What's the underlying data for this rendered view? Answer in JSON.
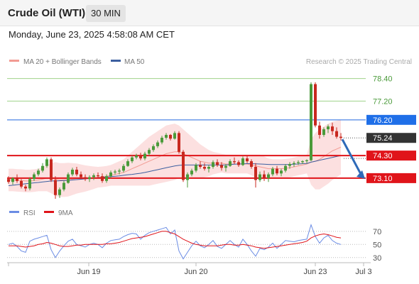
{
  "header": {
    "instrument": "Crude Oil (WTI)",
    "timeframe": "30 MIN",
    "datetime": "Monday, June 23, 2025 4:58:08 AM CET"
  },
  "legend": {
    "ma20_label": "MA 20 + Bollinger Bands",
    "ma50_label": "MA 50",
    "research": "Research © 2025 Trading Central",
    "rsi_label": "RSI",
    "ma9_label": "9MA"
  },
  "colors": {
    "bull": "#4a9a3a",
    "bear": "#c8281f",
    "ma20": "#f29b93",
    "ma50": "#3c5fa0",
    "band": "#fbd6d6",
    "support": "#e0141a",
    "pivot": "#2266dd",
    "resistance_line": "#9fd28a",
    "resistance_text": "#4a9a3a",
    "arrow": "#2e6ab8",
    "rsi": "#6b8ce4",
    "rsi_ma": "#e0141a"
  },
  "chart_data": [
    {
      "type": "candlestick",
      "y_range": [
        72.0,
        78.8
      ],
      "x_labels": [
        "Jun 19",
        "Jun 20",
        "Jun 23",
        "Jul 3"
      ],
      "levels": [
        {
          "value": 78.4,
          "label": "78.40",
          "role": "resistance"
        },
        {
          "value": 77.2,
          "label": "77.20",
          "role": "resistance"
        },
        {
          "value": 76.2,
          "label": "76.20",
          "role": "pivot"
        },
        {
          "value": 75.24,
          "label": "75.24",
          "role": "last"
        },
        {
          "value": 74.3,
          "label": "74.30",
          "role": "support"
        },
        {
          "value": 73.1,
          "label": "73.10",
          "role": "support"
        }
      ],
      "candles": [
        [
          73.05,
          73.2,
          72.8,
          72.9
        ],
        [
          72.9,
          73.15,
          72.75,
          73.1
        ],
        [
          73.1,
          73.3,
          72.85,
          72.95
        ],
        [
          72.95,
          73.05,
          72.55,
          72.65
        ],
        [
          72.65,
          72.75,
          72.4,
          72.55
        ],
        [
          72.55,
          73.15,
          72.45,
          73.05
        ],
        [
          73.05,
          73.4,
          72.95,
          73.3
        ],
        [
          73.3,
          73.6,
          73.2,
          73.5
        ],
        [
          73.5,
          73.9,
          73.4,
          73.75
        ],
        [
          73.75,
          74.2,
          73.65,
          74.1
        ],
        [
          74.1,
          74.2,
          72.9,
          73.0
        ],
        [
          73.0,
          73.2,
          72.0,
          72.2
        ],
        [
          72.2,
          72.6,
          72.05,
          72.5
        ],
        [
          72.5,
          72.95,
          72.4,
          72.85
        ],
        [
          72.85,
          73.4,
          72.8,
          73.3
        ],
        [
          73.3,
          73.65,
          73.2,
          73.55
        ],
        [
          73.55,
          73.7,
          73.2,
          73.3
        ],
        [
          73.3,
          73.45,
          73.05,
          73.15
        ],
        [
          73.15,
          73.3,
          72.95,
          73.05
        ],
        [
          73.05,
          73.25,
          72.9,
          73.15
        ],
        [
          73.15,
          73.35,
          73.0,
          73.25
        ],
        [
          73.25,
          73.4,
          73.1,
          73.2
        ],
        [
          73.2,
          73.35,
          72.85,
          72.95
        ],
        [
          72.95,
          73.3,
          72.85,
          73.2
        ],
        [
          73.2,
          73.5,
          73.1,
          73.4
        ],
        [
          73.4,
          73.55,
          73.3,
          73.45
        ],
        [
          73.45,
          73.6,
          73.3,
          73.5
        ],
        [
          73.5,
          73.85,
          73.4,
          73.75
        ],
        [
          73.75,
          74.1,
          73.7,
          74.0
        ],
        [
          74.0,
          74.3,
          73.9,
          74.2
        ],
        [
          74.2,
          74.4,
          74.1,
          74.3
        ],
        [
          74.3,
          74.45,
          74.05,
          74.15
        ],
        [
          74.15,
          74.5,
          74.05,
          74.4
        ],
        [
          74.4,
          74.7,
          74.3,
          74.6
        ],
        [
          74.6,
          74.9,
          74.5,
          74.8
        ],
        [
          74.8,
          75.1,
          74.7,
          75.0
        ],
        [
          75.0,
          75.35,
          74.9,
          75.25
        ],
        [
          75.25,
          75.5,
          75.15,
          75.4
        ],
        [
          75.4,
          75.45,
          75.1,
          75.2
        ],
        [
          75.2,
          75.6,
          75.15,
          75.5
        ],
        [
          75.5,
          75.6,
          74.4,
          74.5
        ],
        [
          74.5,
          74.6,
          72.9,
          73.0
        ],
        [
          73.0,
          73.4,
          72.6,
          73.3
        ],
        [
          73.3,
          73.6,
          73.2,
          73.5
        ],
        [
          73.5,
          73.9,
          73.4,
          73.8
        ],
        [
          73.8,
          74.0,
          73.6,
          73.7
        ],
        [
          73.7,
          73.9,
          73.5,
          73.6
        ],
        [
          73.6,
          73.8,
          73.4,
          73.7
        ],
        [
          73.7,
          74.05,
          73.6,
          73.95
        ],
        [
          73.95,
          74.1,
          73.7,
          73.8
        ],
        [
          73.8,
          73.95,
          73.5,
          73.65
        ],
        [
          73.65,
          73.85,
          73.45,
          73.75
        ],
        [
          73.75,
          74.1,
          73.7,
          74.0
        ],
        [
          74.0,
          74.2,
          73.85,
          73.95
        ],
        [
          73.95,
          74.05,
          73.7,
          73.8
        ],
        [
          73.8,
          74.25,
          73.75,
          74.15
        ],
        [
          74.15,
          74.3,
          73.9,
          74.0
        ],
        [
          74.0,
          74.1,
          73.6,
          73.7
        ],
        [
          73.7,
          73.9,
          72.6,
          73.0
        ],
        [
          73.0,
          73.45,
          72.9,
          73.3
        ],
        [
          73.3,
          73.5,
          72.95,
          73.1
        ],
        [
          73.1,
          73.4,
          72.9,
          73.3
        ],
        [
          73.3,
          73.7,
          73.2,
          73.6
        ],
        [
          73.6,
          73.75,
          73.25,
          73.35
        ],
        [
          73.35,
          73.6,
          73.2,
          73.5
        ],
        [
          73.5,
          73.85,
          73.4,
          73.75
        ],
        [
          73.75,
          73.95,
          73.6,
          73.85
        ],
        [
          73.85,
          74.0,
          73.7,
          73.9
        ],
        [
          73.9,
          74.05,
          73.8,
          73.95
        ],
        [
          73.95,
          74.05,
          73.85,
          74.0
        ],
        [
          74.0,
          74.1,
          73.9,
          74.05
        ],
        [
          74.05,
          78.2,
          74.0,
          78.1
        ],
        [
          78.1,
          78.2,
          75.8,
          75.9
        ],
        [
          75.9,
          76.1,
          75.2,
          75.4
        ],
        [
          75.4,
          75.8,
          75.3,
          75.7
        ],
        [
          75.7,
          75.95,
          75.5,
          75.85
        ],
        [
          75.85,
          76.05,
          75.4,
          75.6
        ],
        [
          75.6,
          75.8,
          75.2,
          75.3
        ],
        [
          75.3,
          75.5,
          75.1,
          75.24
        ]
      ],
      "ma20": [
        73.0,
        73.0,
        72.98,
        72.97,
        72.95,
        72.95,
        72.97,
        73.0,
        73.05,
        73.1,
        73.1,
        73.05,
        73.0,
        73.0,
        73.02,
        73.05,
        73.08,
        73.08,
        73.08,
        73.1,
        73.12,
        73.15,
        73.17,
        73.2,
        73.25,
        73.3,
        73.35,
        73.4,
        73.5,
        73.6,
        73.7,
        73.8,
        73.9,
        74.0,
        74.1,
        74.2,
        74.3,
        74.4,
        74.45,
        74.5,
        74.5,
        74.4,
        74.3,
        74.2,
        74.1,
        74.0,
        73.95,
        73.9,
        73.9,
        73.9,
        73.9,
        73.85,
        73.85,
        73.85,
        73.85,
        73.85,
        73.85,
        73.8,
        73.75,
        73.7,
        73.65,
        73.6,
        73.6,
        73.6,
        73.6,
        73.62,
        73.65,
        73.7,
        73.75,
        73.8,
        73.85,
        73.95,
        74.0,
        74.1,
        74.25,
        74.4,
        74.55,
        74.65,
        74.75
      ],
      "ma50": [
        72.7,
        72.72,
        72.75,
        72.77,
        72.8,
        72.82,
        72.85,
        72.87,
        72.9,
        72.92,
        72.95,
        72.95,
        72.96,
        72.97,
        72.98,
        73.0,
        73.02,
        73.04,
        73.06,
        73.08,
        73.1,
        73.12,
        73.14,
        73.16,
        73.18,
        73.2,
        73.22,
        73.25,
        73.28,
        73.3,
        73.33,
        73.36,
        73.4,
        73.45,
        73.5,
        73.55,
        73.6,
        73.65,
        73.7,
        73.75,
        73.78,
        73.8,
        73.8,
        73.8,
        73.8,
        73.8,
        73.8,
        73.8,
        73.8,
        73.8,
        73.8,
        73.8,
        73.82,
        73.84,
        73.85,
        73.86,
        73.87,
        73.87,
        73.86,
        73.85,
        73.84,
        73.83,
        73.82,
        73.82,
        73.82,
        73.82,
        73.83,
        73.84,
        73.85,
        73.87,
        73.88,
        73.95,
        74.0,
        74.05,
        74.1,
        74.15,
        74.2,
        74.25,
        74.3
      ],
      "band_width": [
        0.6,
        0.6,
        0.6,
        0.6,
        0.6,
        0.6,
        0.6,
        0.6,
        0.65,
        0.7,
        0.8,
        0.9,
        0.9,
        0.9,
        0.9,
        0.85,
        0.8,
        0.75,
        0.7,
        0.65,
        0.6,
        0.55,
        0.55,
        0.55,
        0.55,
        0.6,
        0.65,
        0.7,
        0.8,
        0.9,
        1.0,
        1.1,
        1.2,
        1.3,
        1.35,
        1.4,
        1.45,
        1.5,
        1.5,
        1.5,
        1.4,
        1.3,
        1.2,
        1.1,
        1.0,
        0.9,
        0.8,
        0.7,
        0.6,
        0.55,
        0.5,
        0.5,
        0.5,
        0.5,
        0.5,
        0.5,
        0.5,
        0.55,
        0.6,
        0.65,
        0.6,
        0.55,
        0.5,
        0.5,
        0.5,
        0.5,
        0.5,
        0.5,
        0.5,
        0.5,
        0.5,
        1.2,
        1.5,
        1.6,
        1.6,
        1.6,
        1.55,
        1.5,
        1.45
      ],
      "projection": {
        "from": 75.24,
        "to": 73.1
      }
    },
    {
      "type": "line",
      "y_range": [
        20,
        85
      ],
      "ticks": [
        70,
        50,
        30
      ],
      "rsi": [
        50,
        52,
        47,
        40,
        38,
        55,
        58,
        60,
        62,
        64,
        42,
        30,
        40,
        48,
        55,
        58,
        50,
        48,
        46,
        50,
        52,
        50,
        45,
        52,
        56,
        57,
        58,
        62,
        65,
        67,
        66,
        58,
        64,
        68,
        70,
        72,
        74,
        76,
        66,
        72,
        40,
        28,
        38,
        48,
        55,
        48,
        45,
        50,
        56,
        47,
        44,
        50,
        56,
        50,
        46,
        58,
        50,
        40,
        32,
        44,
        42,
        46,
        52,
        44,
        50,
        56,
        55,
        54,
        56,
        57,
        58,
        80,
        62,
        52,
        60,
        64,
        56,
        52,
        50
      ],
      "ma9": [
        48,
        48,
        48,
        47,
        46,
        47,
        48,
        50,
        51,
        53,
        52,
        50,
        48,
        47,
        47,
        48,
        49,
        49,
        50,
        50,
        50,
        50,
        50,
        51,
        51,
        52,
        53,
        55,
        57,
        59,
        60,
        61,
        62,
        64,
        66,
        68,
        70,
        70,
        68,
        66,
        62,
        58,
        55,
        52,
        50,
        49,
        48,
        48,
        48,
        48,
        49,
        50,
        50,
        49,
        49,
        50,
        49,
        48,
        46,
        45,
        44,
        45,
        46,
        47,
        48,
        49,
        50,
        51,
        52,
        53,
        55,
        60,
        63,
        65,
        66,
        65,
        63,
        61,
        60
      ]
    }
  ]
}
